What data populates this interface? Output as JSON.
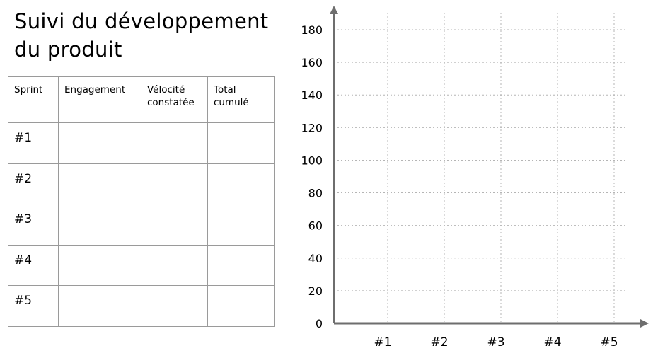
{
  "title": {
    "line1": "Suivi du développement",
    "line2": "du produit"
  },
  "table": {
    "headers": [
      "Sprint",
      "Engagement",
      "Vélocité constatée",
      "Total cumulé"
    ],
    "rows": [
      [
        "#1",
        "",
        "",
        ""
      ],
      [
        "#2",
        "",
        "",
        ""
      ],
      [
        "#3",
        "",
        "",
        ""
      ],
      [
        "#4",
        "",
        "",
        ""
      ],
      [
        "#5",
        "",
        "",
        ""
      ]
    ]
  },
  "chart_data": {
    "type": "line",
    "title": "",
    "xlabel": "",
    "ylabel": "",
    "categories": [
      "#1",
      "#2",
      "#3",
      "#4",
      "#5"
    ],
    "ylim": [
      0,
      180
    ],
    "yticks": [
      0,
      20,
      40,
      60,
      80,
      100,
      120,
      140,
      160,
      180
    ],
    "series": [],
    "grid": true,
    "grid_style": "dotted"
  }
}
